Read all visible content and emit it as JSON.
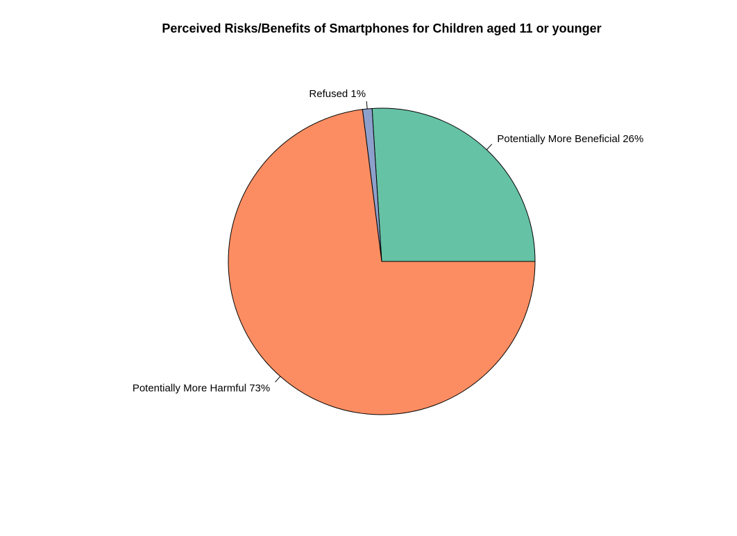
{
  "chart_data": {
    "type": "pie",
    "title": "Perceived Risks/Benefits of Smartphones for Children aged 11 or younger",
    "slices": [
      {
        "label": "Potentially More Beneficial 26%",
        "value": 26,
        "color": "#66c2a5"
      },
      {
        "label": "Refused 1%",
        "value": 1,
        "color": "#8da0cb"
      },
      {
        "label": "Potentially More Harmful 73%",
        "value": 73,
        "color": "#fc8d62"
      }
    ]
  }
}
